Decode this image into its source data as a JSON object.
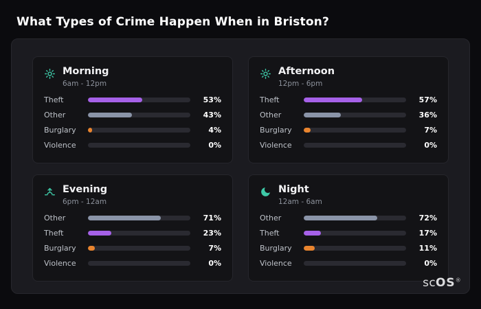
{
  "page": {
    "title": "What Types of Crime Happen When in Briston?"
  },
  "watermark": {
    "part1": "sc",
    "part2": "OS",
    "reg": "®"
  },
  "colors": {
    "background": "#0b0b0e",
    "panel": "#1b1b20",
    "card": "#131316",
    "icon_accent": "#3ec9a7",
    "theft": "#a661e8",
    "other": "#8a94a8",
    "burglary": "#e9842e",
    "track": "#2a2a31"
  },
  "chart_data": {
    "type": "bar",
    "orientation": "horizontal",
    "unit": "%",
    "value_range": [
      0,
      100
    ],
    "groups": [
      {
        "id": "morning",
        "title": "Morning",
        "subtitle": "6am - 12pm",
        "icon": "sun-icon",
        "rows": [
          {
            "label": "Theft",
            "value": 53,
            "color": "#a661e8"
          },
          {
            "label": "Other",
            "value": 43,
            "color": "#8a94a8"
          },
          {
            "label": "Burglary",
            "value": 4,
            "color": "#e9842e"
          },
          {
            "label": "Violence",
            "value": 0,
            "color": "#8a94a8"
          }
        ]
      },
      {
        "id": "afternoon",
        "title": "Afternoon",
        "subtitle": "12pm - 6pm",
        "icon": "sun-icon",
        "rows": [
          {
            "label": "Theft",
            "value": 57,
            "color": "#a661e8"
          },
          {
            "label": "Other",
            "value": 36,
            "color": "#8a94a8"
          },
          {
            "label": "Burglary",
            "value": 7,
            "color": "#e9842e"
          },
          {
            "label": "Violence",
            "value": 0,
            "color": "#8a94a8"
          }
        ]
      },
      {
        "id": "evening",
        "title": "Evening",
        "subtitle": "6pm - 12am",
        "icon": "sunrise-icon",
        "rows": [
          {
            "label": "Other",
            "value": 71,
            "color": "#8a94a8"
          },
          {
            "label": "Theft",
            "value": 23,
            "color": "#a661e8"
          },
          {
            "label": "Burglary",
            "value": 7,
            "color": "#e9842e"
          },
          {
            "label": "Violence",
            "value": 0,
            "color": "#8a94a8"
          }
        ]
      },
      {
        "id": "night",
        "title": "Night",
        "subtitle": "12am - 6am",
        "icon": "moon-icon",
        "rows": [
          {
            "label": "Other",
            "value": 72,
            "color": "#8a94a8"
          },
          {
            "label": "Theft",
            "value": 17,
            "color": "#a661e8"
          },
          {
            "label": "Burglary",
            "value": 11,
            "color": "#e9842e"
          },
          {
            "label": "Violence",
            "value": 0,
            "color": "#8a94a8"
          }
        ]
      }
    ]
  }
}
